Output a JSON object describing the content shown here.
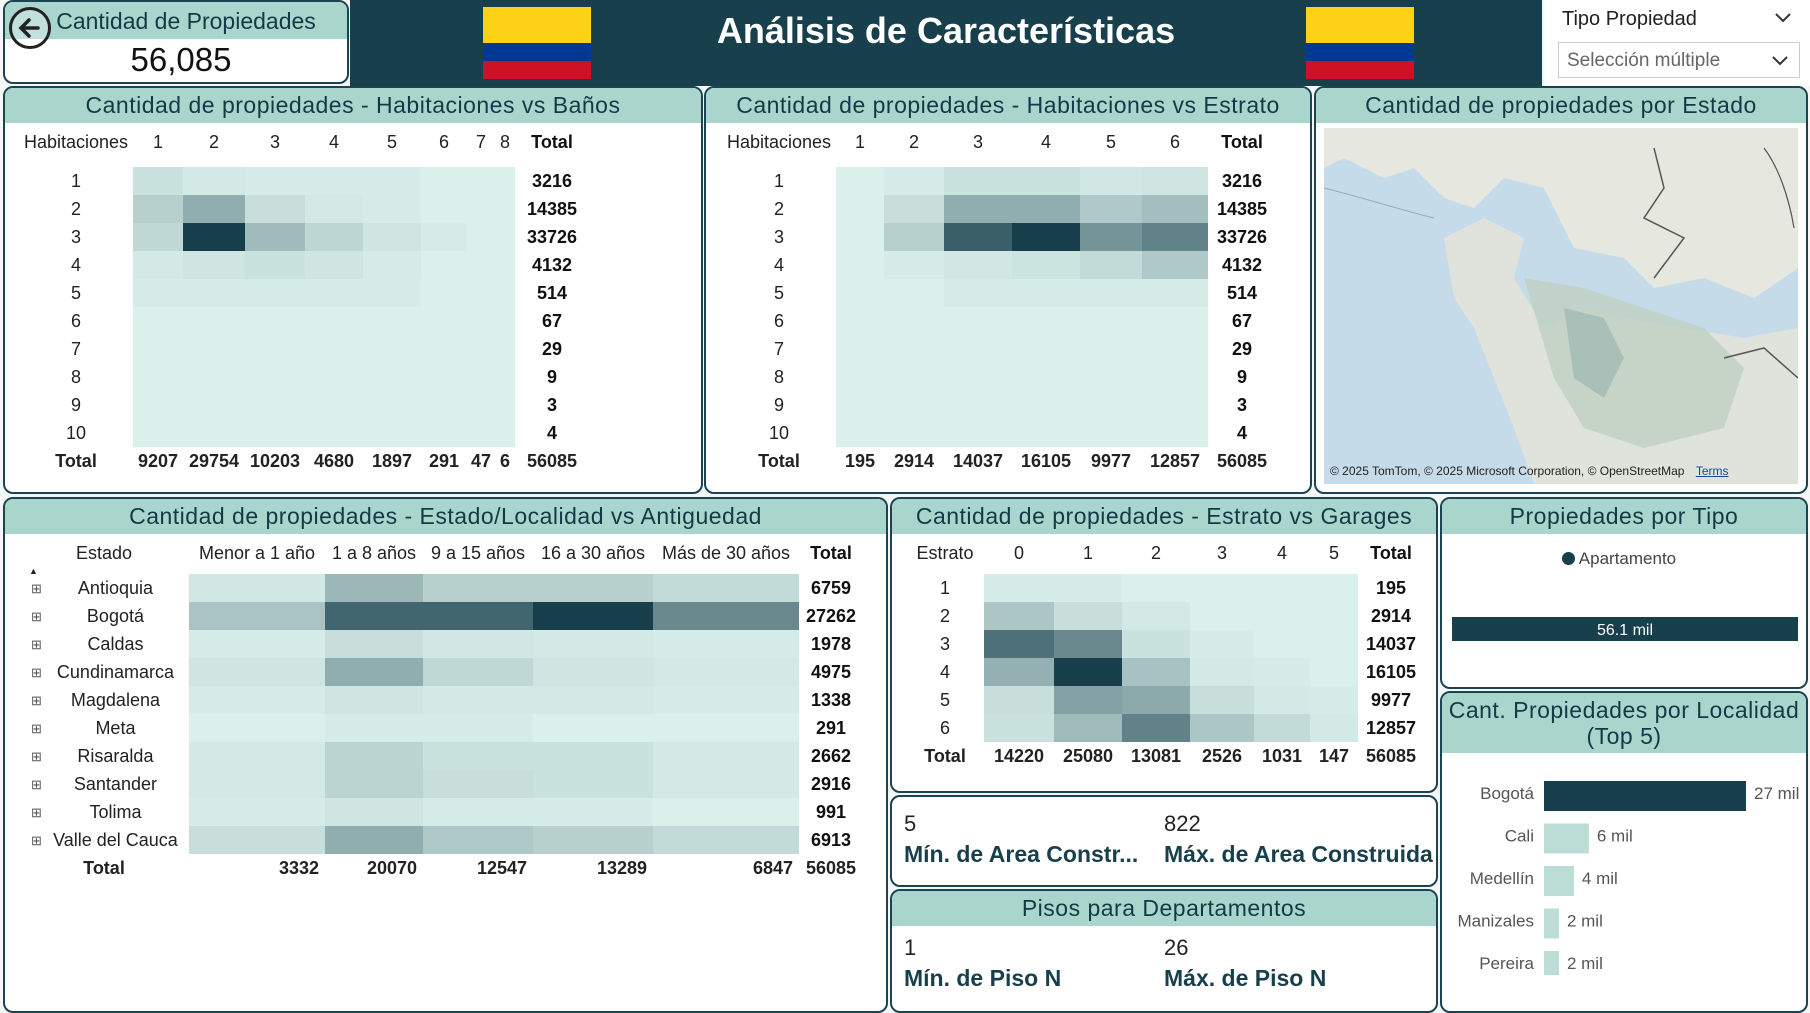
{
  "kpi": {
    "label": "Cantidad de Propiedades",
    "value": "56,085"
  },
  "header": {
    "title": "Análisis de Características"
  },
  "colors": {
    "dark": "#173f4c",
    "accent": "#a9d5cd",
    "flag_yellow": "#fcd116",
    "flag_blue": "#003893",
    "flag_red": "#ce1126"
  },
  "filter": {
    "label": "Tipo Propiedad",
    "value": "Selección múltiple"
  },
  "hab_banos": {
    "title": "Cantidad de propiedades - Habitaciones vs Baños",
    "corner": "Habitaciones",
    "cols": [
      "1",
      "2",
      "3",
      "4",
      "5",
      "6",
      "7",
      "8"
    ],
    "total_label": "Total",
    "rows": [
      "1",
      "2",
      "3",
      "4",
      "5",
      "6",
      "7",
      "8",
      "9",
      "10"
    ],
    "row_totals": [
      "3216",
      "14385",
      "33726",
      "4132",
      "514",
      "67",
      "29",
      "9",
      "3",
      "4"
    ],
    "col_totals": [
      "9207",
      "29754",
      "10203",
      "4680",
      "1897",
      "291",
      "47",
      "6"
    ],
    "grand_total": "56085"
  },
  "hab_estrato": {
    "title": "Cantidad de propiedades - Habitaciones vs Estrato",
    "corner": "Habitaciones",
    "cols": [
      "1",
      "2",
      "3",
      "4",
      "5",
      "6"
    ],
    "total_label": "Total",
    "rows": [
      "1",
      "2",
      "3",
      "4",
      "5",
      "6",
      "7",
      "8",
      "9",
      "10"
    ],
    "row_totals": [
      "3216",
      "14385",
      "33726",
      "4132",
      "514",
      "67",
      "29",
      "9",
      "3",
      "4"
    ],
    "col_totals": [
      "195",
      "2914",
      "14037",
      "16105",
      "9977",
      "12857"
    ],
    "grand_total": "56085"
  },
  "map": {
    "title": "Cantidad de propiedades por Estado",
    "attribution": "© 2025 TomTom, © 2025 Microsoft Corporation, © OpenStreetMap",
    "terms": "Terms"
  },
  "estado_antig": {
    "title": "Cantidad de propiedades - Estado/Localidad vs Antiguedad",
    "corner": "Estado",
    "cols": [
      "Menor a 1 año",
      "1 a 8 años",
      "9 a 15 años",
      "16 a 30 años",
      "Más de 30 años"
    ],
    "total_label": "Total",
    "rows": [
      "Antioquia",
      "Bogotá",
      "Caldas",
      "Cundinamarca",
      "Magdalena",
      "Meta",
      "Risaralda",
      "Santander",
      "Tolima",
      "Valle del Cauca"
    ],
    "row_totals": [
      "6759",
      "27262",
      "1978",
      "4975",
      "1338",
      "291",
      "2662",
      "2916",
      "991",
      "6913"
    ],
    "col_totals": [
      "3332",
      "20070",
      "12547",
      "13289",
      "6847"
    ],
    "grand_total": "56085"
  },
  "estrato_garages": {
    "title": "Cantidad de propiedades - Estrato vs Garages",
    "corner": "Estrato",
    "cols": [
      "0",
      "1",
      "2",
      "3",
      "4",
      "5"
    ],
    "total_label": "Total",
    "rows": [
      "1",
      "2",
      "3",
      "4",
      "5",
      "6"
    ],
    "row_totals": [
      "195",
      "2914",
      "14037",
      "16105",
      "9977",
      "12857"
    ],
    "col_totals": [
      "14220",
      "25080",
      "13081",
      "2526",
      "1031",
      "147"
    ],
    "grand_total": "56085"
  },
  "area": {
    "min_value": "5",
    "min_label": "Mín. de Area Constr...",
    "max_value": "822",
    "max_label": "Máx. de Area Construida"
  },
  "pisos": {
    "title": "Pisos para Departamentos",
    "min_value": "1",
    "min_label": "Mín. de Piso N",
    "max_value": "26",
    "max_label": "Máx. de Piso N"
  },
  "tipo": {
    "title": "Propiedades por Tipo",
    "legend": "Apartamento",
    "chart_data": {
      "type": "bar",
      "categories": [
        "Apartamento"
      ],
      "values": [
        56085
      ],
      "data_labels": [
        "56.1 mil"
      ]
    }
  },
  "localidad": {
    "title": "Cant. Propiedades por Localidad (Top 5)",
    "chart_data": {
      "type": "bar",
      "categories": [
        "Bogotá",
        "Cali",
        "Medellín",
        "Manizales",
        "Pereira"
      ],
      "values": [
        27000,
        6000,
        4000,
        2000,
        2000
      ],
      "data_labels": [
        "27 mil",
        "6 mil",
        "4 mil",
        "2 mil",
        "2 mil"
      ]
    }
  }
}
